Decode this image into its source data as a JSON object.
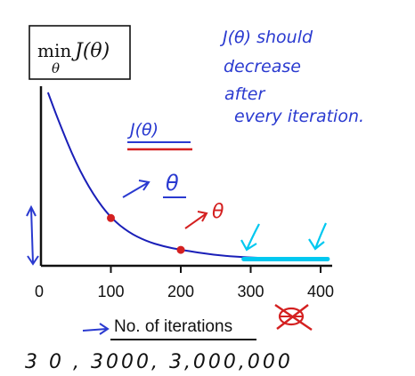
{
  "chart_data": {
    "type": "line",
    "title": "",
    "xlabel": "No. of iterations",
    "ylabel": "",
    "xlim": [
      0,
      420
    ],
    "ylim": [
      0,
      1
    ],
    "xticks": [
      0,
      100,
      200,
      300,
      400
    ],
    "x": [
      10,
      25,
      50,
      75,
      100,
      125,
      150,
      175,
      200,
      250,
      300,
      350,
      400
    ],
    "series": [
      {
        "name": "J(θ)",
        "color": "#1a1fb8",
        "values": [
          0.98,
          0.82,
          0.58,
          0.4,
          0.27,
          0.19,
          0.14,
          0.11,
          0.09,
          0.06,
          0.045,
          0.04,
          0.038
        ]
      }
    ],
    "highlighted_points": [
      {
        "x": 100,
        "y": 0.27,
        "color": "#d42020"
      },
      {
        "x": 200,
        "y": 0.09,
        "color": "#d42020"
      }
    ],
    "flat_segment": {
      "x_start": 290,
      "x_end": 410,
      "color": "#00c8f0"
    },
    "grid": false
  },
  "objective_box": {
    "min": "min",
    "subscript": "θ",
    "function": "J(θ)"
  },
  "annotations": {
    "curve_label": "J(θ)",
    "theta_near_point1": "θ",
    "theta_near_point2": "θ",
    "note_lines": [
      "J(θ) should",
      "decrease",
      "after",
      "every iteration."
    ],
    "bottom_text": "3 0 ,   3000,  3,000,000"
  },
  "colors": {
    "axis": "#111111",
    "curve": "#1a1fb8",
    "handwriting_blue": "#2a3ad0",
    "handwriting_red": "#d42020",
    "highlight_cyan": "#00c8f0"
  }
}
